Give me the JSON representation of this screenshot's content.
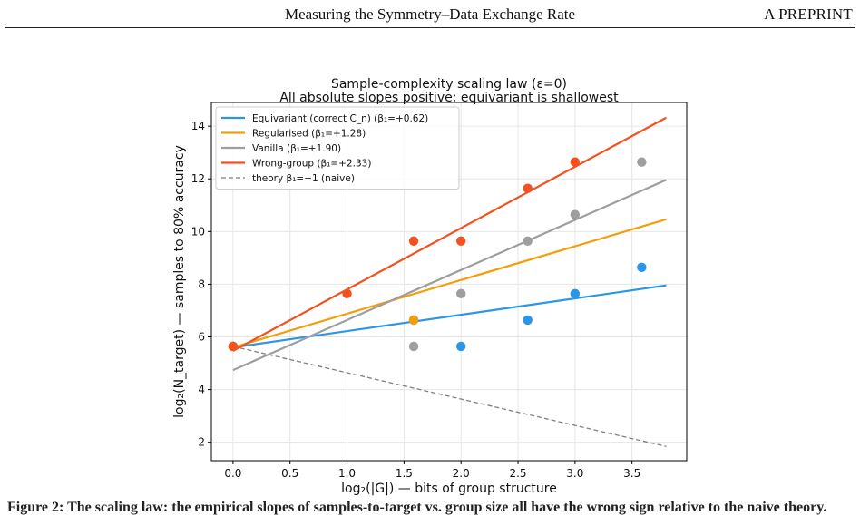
{
  "header": {
    "title": "Measuring the Symmetry–Data Exchange Rate",
    "right_label": "A PREPRINT"
  },
  "chart_data": {
    "type": "scatter",
    "title": "Sample-complexity scaling law (ε=0)",
    "subtitle": "All absolute slopes positive; equivariant is shallowest",
    "xlabel": "log₂(|G|)  — bits of group structure",
    "ylabel": "log₂(N_target)  — samples to 80% accuracy",
    "xlim": [
      -0.19,
      3.98
    ],
    "ylim": [
      1.3,
      14.9
    ],
    "xticks": [
      0.0,
      0.5,
      1.0,
      1.5,
      2.0,
      2.5,
      3.0,
      3.5
    ],
    "xtick_labels": [
      "0.0",
      "0.5",
      "1.0",
      "1.5",
      "2.0",
      "2.5",
      "3.0",
      "3.5"
    ],
    "yticks": [
      2,
      4,
      6,
      8,
      10,
      12,
      14
    ],
    "ytick_labels": [
      "2",
      "4",
      "6",
      "8",
      "10",
      "12",
      "14"
    ],
    "grid": true,
    "legend_position": "top-left",
    "series": [
      {
        "name": "Equivariant (correct C_n)  (β₁=+0.62)",
        "color": "#2b96e8",
        "points": [
          [
            0.0,
            5.64
          ],
          [
            1.585,
            6.64
          ],
          [
            2.0,
            5.64
          ],
          [
            2.585,
            6.64
          ],
          [
            3.0,
            7.64
          ],
          [
            3.585,
            8.64
          ]
        ],
        "fit": {
          "intercept": 5.6,
          "slope": 0.62,
          "x_range": [
            0.0,
            3.8
          ]
        }
      },
      {
        "name": "Regularised  (β₁=+1.28)",
        "color": "#f59e0b",
        "points": [
          [
            0.0,
            5.64
          ],
          [
            1.585,
            6.64
          ]
        ],
        "fit": {
          "intercept": 5.6,
          "slope": 1.28,
          "x_range": [
            0.0,
            3.8
          ]
        }
      },
      {
        "name": "Vanilla  (β₁=+1.90)",
        "color": "#9e9e9e",
        "points": [
          [
            0.0,
            5.64
          ],
          [
            1.585,
            5.64
          ],
          [
            2.0,
            7.64
          ],
          [
            2.585,
            9.64
          ],
          [
            3.0,
            10.64
          ],
          [
            3.585,
            12.64
          ]
        ],
        "fit": {
          "intercept": 4.74,
          "slope": 1.9,
          "x_range": [
            0.0,
            3.8
          ]
        }
      },
      {
        "name": "Wrong-group  (β₁=+2.33)",
        "color": "#f4511e",
        "points": [
          [
            0.0,
            5.64
          ],
          [
            1.0,
            7.64
          ],
          [
            1.585,
            9.64
          ],
          [
            2.0,
            9.64
          ],
          [
            2.585,
            11.64
          ],
          [
            3.0,
            12.64
          ]
        ],
        "fit": {
          "intercept": 5.47,
          "slope": 2.33,
          "x_range": [
            0.0,
            3.8
          ]
        }
      }
    ],
    "reference": {
      "name": "theory β₁=−1 (naive)",
      "color": "#808080",
      "style": "dashed",
      "intercept": 5.64,
      "slope": -1.0,
      "x_range": [
        0.0,
        3.8
      ]
    }
  },
  "caption": "Figure 2: The scaling law: the empirical slopes of samples-to-target vs. group size all have the wrong sign relative to the naive theory."
}
